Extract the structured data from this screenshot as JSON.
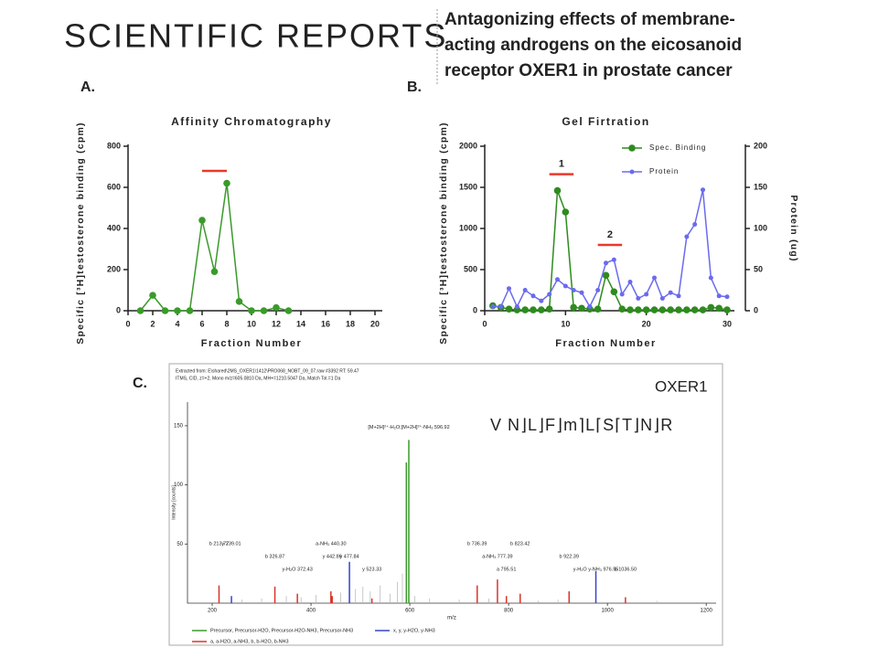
{
  "header": {
    "journal": "SCIENTIFIC REPORTS",
    "title_lines": [
      "Antagonizing effects of membrane-",
      "acting androgens on the eicosanoid",
      "receptor OXER1 in prostate cancer"
    ],
    "panel_labels": [
      "A.",
      "B.",
      "C."
    ]
  },
  "chart_data": [
    {
      "type": "line",
      "title": "Affinity Chromatography",
      "xlabel": "Fraction Number",
      "ylabel": "Specific [³H]testosterone binding (cpm)",
      "xlim": [
        0,
        20
      ],
      "xticks": [
        0,
        2,
        4,
        6,
        8,
        10,
        12,
        14,
        16,
        18,
        20
      ],
      "ylim": [
        0,
        800
      ],
      "yticks": [
        0,
        200,
        400,
        600,
        800
      ],
      "series": [
        {
          "color": "#3a9a2a",
          "x": [
            1,
            2,
            3,
            4,
            5,
            6,
            7,
            8,
            9,
            10,
            11,
            12,
            13
          ],
          "values": [
            0,
            75,
            0,
            0,
            0,
            440,
            190,
            620,
            45,
            0,
            0,
            15,
            0
          ]
        }
      ],
      "highlights": [
        {
          "x": [
            6,
            8
          ],
          "y": 680,
          "color": "#e8392b"
        }
      ]
    },
    {
      "type": "line",
      "title": "Gel Firtration",
      "xlabel": "Fraction Number",
      "ylabel": "Specific [³H]testosterone binding (cpm)",
      "y2label": "Protein (ug)",
      "xlim": [
        0,
        30
      ],
      "xticks": [
        0,
        10,
        20,
        30
      ],
      "ylim": [
        0,
        2000
      ],
      "yticks": [
        0,
        500,
        1000,
        1500,
        2000
      ],
      "y2lim": [
        0,
        200
      ],
      "y2ticks": [
        0,
        50,
        100,
        150,
        200
      ],
      "series": [
        {
          "name": "Spec. Binding",
          "color": "#2e8b1e",
          "x": [
            1,
            2,
            3,
            4,
            5,
            6,
            7,
            8,
            9,
            10,
            11,
            12,
            13,
            14,
            15,
            16,
            17,
            18,
            19,
            20,
            21,
            22,
            23,
            24,
            25,
            26,
            27,
            28,
            29,
            30
          ],
          "values": [
            60,
            40,
            20,
            10,
            10,
            10,
            10,
            20,
            1460,
            1200,
            40,
            30,
            20,
            20,
            430,
            230,
            20,
            10,
            10,
            10,
            10,
            10,
            10,
            10,
            10,
            10,
            10,
            40,
            30,
            10
          ]
        },
        {
          "name": "Protein",
          "color": "#6a6af0",
          "axis": "y2",
          "x": [
            1,
            2,
            3,
            4,
            5,
            6,
            7,
            8,
            9,
            10,
            11,
            12,
            13,
            14,
            15,
            16,
            17,
            18,
            19,
            20,
            21,
            22,
            23,
            24,
            25,
            26,
            27,
            28,
            29,
            30
          ],
          "values": [
            5,
            5,
            27,
            5,
            25,
            18,
            12,
            20,
            38,
            30,
            25,
            22,
            5,
            25,
            58,
            62,
            20,
            35,
            15,
            20,
            40,
            15,
            22,
            18,
            90,
            105,
            147,
            40,
            18,
            17
          ]
        }
      ],
      "legend": "upper right",
      "highlights": [
        {
          "x": [
            8,
            11
          ],
          "y": 1660,
          "color": "#e8392b",
          "label": "1"
        },
        {
          "x": [
            14,
            17
          ],
          "y": 800,
          "color": "#e8392b",
          "label": "2"
        }
      ]
    },
    {
      "type": "spectrum",
      "title": "OXER1",
      "sequence": "V N⌋L⌋F⌋m⌉L⌈S⌈T⌋N⌋R",
      "info_lines": [
        "Extracted from: E\\shared\\2MS_OXER1\\1412\\PRO068_NOBT_09_07.raw #3392 RT: 59.47",
        "ITMS, CID, z=+2, Mono m/z=605.0810 Da, MH+=1210.5047 Da, Match Tol.=1 Da"
      ],
      "xlabel": "m/z",
      "ylabel": "Intensity [counts]",
      "xlim": [
        150,
        1220
      ],
      "xticks": [
        200,
        400,
        600,
        800,
        1000,
        1200
      ],
      "ylim": [
        0,
        170
      ],
      "yticks": [
        50,
        100,
        150
      ],
      "series": [
        {
          "name": "Precursor, Precursor-H2O, Precursor-H2O-NH3, Precursor-NH3",
          "color": "#3a9a2a",
          "x": [
            593,
            598
          ],
          "values": [
            119,
            138
          ],
          "labels": [
            null,
            "[M+2H]²⁺-H₂O;[M+2H]²⁺-NH₃ 596.92"
          ]
        },
        {
          "name": "a, a-H2O, a-NH3, b, b-H2O, b-NH3",
          "color": "#d9332b",
          "x": [
            213.8,
            326.9,
            372.4,
            440.3,
            442.9,
            523.3,
            736.4,
            777.4,
            795.5,
            823.4,
            922.4,
            1036.5
          ],
          "values": [
            15,
            14,
            8,
            10,
            6,
            4,
            15,
            20,
            6,
            8,
            10,
            5
          ],
          "labels": [
            "b 213.77",
            "b 326.87",
            "y-H₂O 372.43",
            "a-NH₃ 440.30",
            "y 442.86",
            "y 523.33",
            "b 736.39",
            "a-NH₃ 777.39",
            "a 795.51",
            "b 823.42",
            "b 922.39",
            "b 1036.50"
          ]
        },
        {
          "name": "x, y, y-H2O, y-NH3",
          "color": "#3344cc",
          "x": [
            239,
            477.8,
            976.6
          ],
          "values": [
            6,
            35,
            27
          ],
          "labels": [
            "y 239.01",
            "y 477.84",
            "y-H₂O y-NH₃ 976.55"
          ]
        },
        {
          "color": "#bbbbbb",
          "x": [
            260,
            300,
            350,
            380,
            410,
            460,
            490,
            505,
            520,
            540,
            560,
            575,
            585,
            610,
            640,
            700,
            760,
            860,
            900,
            1100
          ],
          "values": [
            3,
            4,
            6,
            5,
            7,
            9,
            12,
            14,
            10,
            15,
            8,
            18,
            25,
            6,
            4,
            3,
            4,
            2,
            3,
            2
          ]
        }
      ]
    }
  ]
}
